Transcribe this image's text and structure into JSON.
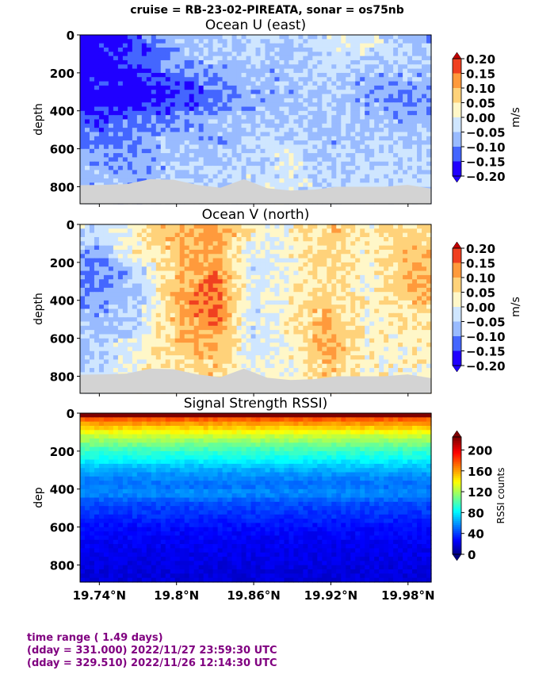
{
  "suptitle": "cruise = RB-23-02-PIREATA,  sonar = os75nb",
  "x_axis": {
    "range": [
      19.725,
      19.998
    ],
    "ticks": [
      19.74,
      19.8,
      19.86,
      19.92,
      19.98
    ],
    "tick_labels": [
      "19.74°N",
      "19.8°N",
      "19.86°N",
      "19.92°N",
      "19.98°N"
    ]
  },
  "footer": {
    "line1": "time range ( 1.49 days)",
    "line2": "(dday = 331.000) 2022/11/27 23:59:30 UTC",
    "line3": "(dday = 329.510) 2022/11/26 12:14:30 UTC"
  },
  "colors": {
    "bad_data": "#d3d3d3",
    "footer_text": "#800080",
    "diverging_levels": [
      "#2000ff",
      "#4466ff",
      "#99bbff",
      "#cfe6ff",
      "#fff7c8",
      "#ffd27a",
      "#ff9a3c",
      "#f04020",
      "#c00000"
    ],
    "jet_stops": [
      "#00007f",
      "#0000ff",
      "#007fff",
      "#00ffff",
      "#7fff7f",
      "#ffff00",
      "#ff7f00",
      "#ff0000",
      "#7f0000"
    ]
  },
  "chart_data": [
    {
      "type": "heatmap",
      "title": "Ocean U (east)",
      "ylabel": "depth",
      "ylim": [
        890,
        0
      ],
      "yticks": [
        0,
        200,
        400,
        600,
        800
      ],
      "colorbar": {
        "label": "m/s",
        "range": [
          -0.2,
          0.2
        ],
        "ticks": [
          "0.20",
          "0.15",
          "0.10",
          "0.05",
          "0.00",
          "−0.05",
          "−0.10",
          "−0.15",
          "−0.20"
        ]
      },
      "depth_bins": [
        50,
        150,
        250,
        350,
        450,
        550,
        650,
        750
      ],
      "lat_bins": [
        19.74,
        19.77,
        19.8,
        19.83,
        19.86,
        19.89,
        19.92,
        19.95,
        19.98
      ],
      "values": [
        [
          -0.18,
          -0.14,
          -0.07,
          -0.05,
          -0.04,
          -0.06,
          -0.02,
          -0.01,
          -0.07
        ],
        [
          -0.2,
          -0.15,
          -0.09,
          -0.07,
          -0.06,
          -0.07,
          -0.03,
          -0.05,
          -0.05
        ],
        [
          -0.17,
          -0.18,
          -0.13,
          -0.11,
          -0.07,
          -0.08,
          -0.04,
          -0.09,
          -0.08
        ],
        [
          -0.21,
          -0.19,
          -0.16,
          -0.12,
          -0.08,
          -0.06,
          -0.05,
          -0.08,
          -0.1
        ],
        [
          -0.13,
          -0.11,
          -0.1,
          -0.07,
          -0.06,
          -0.05,
          -0.06,
          -0.07,
          -0.07
        ],
        [
          -0.11,
          -0.09,
          -0.07,
          -0.08,
          -0.05,
          -0.04,
          -0.07,
          -0.05,
          -0.06
        ],
        [
          -0.09,
          -0.1,
          -0.06,
          -0.06,
          -0.04,
          -0.01,
          -0.06,
          -0.04,
          -0.05
        ],
        [
          -0.07,
          -0.08,
          -0.05,
          -0.05,
          -0.03,
          -0.02,
          -0.05,
          -0.03,
          -0.04
        ]
      ],
      "bottom_depth": [
        792,
        790,
        786,
        760,
        763,
        790,
        805,
        760,
        808,
        820,
        815,
        800,
        800,
        800,
        790,
        810
      ]
    },
    {
      "type": "heatmap",
      "title": "Ocean V (north)",
      "ylabel": "depth",
      "ylim": [
        890,
        0
      ],
      "yticks": [
        0,
        200,
        400,
        600,
        800
      ],
      "colorbar": {
        "label": "m/s",
        "range": [
          -0.2,
          0.2
        ],
        "ticks": [
          "0.20",
          "0.15",
          "0.10",
          "0.05",
          "0.00",
          "−0.05",
          "−0.10",
          "−0.15",
          "−0.20"
        ]
      },
      "depth_bins": [
        50,
        150,
        250,
        350,
        450,
        550,
        650,
        750
      ],
      "lat_bins": [
        19.74,
        19.77,
        19.8,
        19.83,
        19.86,
        19.89,
        19.92,
        19.95,
        19.98
      ],
      "values": [
        [
          -0.03,
          0.02,
          0.1,
          0.12,
          0.03,
          0.02,
          0.08,
          0.03,
          0.06
        ],
        [
          -0.08,
          0.03,
          0.09,
          0.11,
          -0.02,
          0.02,
          0.07,
          0.02,
          0.09
        ],
        [
          -0.12,
          -0.05,
          0.08,
          0.13,
          -0.03,
          0.01,
          0.07,
          0.01,
          0.11
        ],
        [
          -0.11,
          -0.06,
          0.09,
          0.16,
          -0.02,
          0.03,
          0.06,
          0.01,
          0.1
        ],
        [
          -0.08,
          -0.04,
          0.1,
          0.17,
          -0.04,
          0.04,
          0.09,
          0.02,
          0.06
        ],
        [
          -0.06,
          -0.03,
          0.09,
          0.13,
          -0.03,
          0.03,
          0.1,
          0.01,
          0.04
        ],
        [
          -0.05,
          0.0,
          0.08,
          0.11,
          -0.02,
          0.02,
          0.12,
          0.02,
          0.03
        ],
        [
          -0.04,
          0.02,
          0.06,
          0.07,
          -0.01,
          0.02,
          0.08,
          0.02,
          0.02
        ]
      ],
      "bottom_depth": [
        792,
        790,
        786,
        760,
        763,
        790,
        805,
        760,
        808,
        820,
        815,
        800,
        800,
        800,
        790,
        810
      ]
    },
    {
      "type": "heatmap",
      "title": "Signal Strength RSSI)",
      "ylabel": "dep",
      "ylim": [
        890,
        0
      ],
      "yticks": [
        0,
        200,
        400,
        600,
        800
      ],
      "colorbar": {
        "label": "RSSI counts",
        "range": [
          0,
          225
        ],
        "ticks": [
          "200",
          "160",
          "120",
          "80",
          "40",
          "0"
        ]
      },
      "depth_profile": {
        "depth": [
          20,
          50,
          80,
          120,
          160,
          200,
          240,
          280,
          330,
          380,
          420,
          480,
          540,
          600,
          700,
          850
        ],
        "rssi": [
          185,
          165,
          150,
          128,
          112,
          96,
          86,
          72,
          60,
          52,
          60,
          44,
          38,
          30,
          25,
          20
        ]
      }
    }
  ]
}
